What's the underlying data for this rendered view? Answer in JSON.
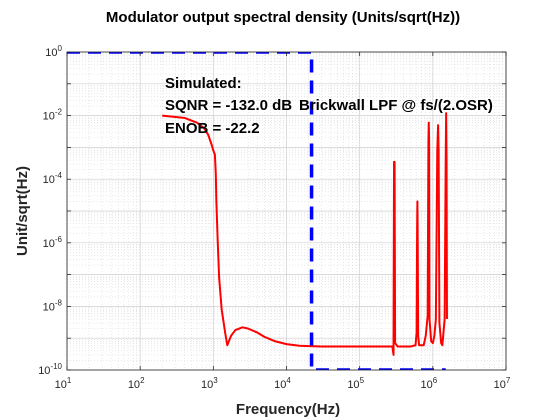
{
  "chart_data": {
    "type": "line",
    "title": "Modulator output spectral density (Units/sqrt(Hz))",
    "xlabel": "Frequency(Hz)",
    "ylabel": "Unit/sqrt(Hz)",
    "xscale": "log",
    "yscale": "log",
    "xlim": [
      10,
      10000000
    ],
    "ylim": [
      1e-10,
      1
    ],
    "grid": true,
    "minor_grid": true,
    "x_tick_labels": [
      {
        "base": "10",
        "exp": "1"
      },
      {
        "base": "10",
        "exp": "2"
      },
      {
        "base": "10",
        "exp": "3"
      },
      {
        "base": "10",
        "exp": "4"
      },
      {
        "base": "10",
        "exp": "5"
      },
      {
        "base": "10",
        "exp": "6"
      },
      {
        "base": "10",
        "exp": "7"
      }
    ],
    "y_tick_labels": [
      {
        "base": "10",
        "exp": "-10"
      },
      {
        "base": "10",
        "exp": "-8"
      },
      {
        "base": "10",
        "exp": "-6"
      },
      {
        "base": "10",
        "exp": "-4"
      },
      {
        "base": "10",
        "exp": "-2"
      },
      {
        "base": "10",
        "exp": "0"
      }
    ],
    "annotations": [
      "Simulated:",
      "SQNR = -132.0 dB",
      "ENOB = -22.2",
      "Brickwall LPF @ fs/(2.OSR)"
    ],
    "series": [
      {
        "color": "#ff0000",
        "style": "solid",
        "points": [
          [
            200,
            0.01
          ],
          [
            400,
            0.0085
          ],
          [
            600,
            0.006
          ],
          [
            750,
            0.004
          ],
          [
            850,
            0.0025
          ],
          [
            950,
            0.0012
          ],
          [
            1000,
            0.0008
          ],
          [
            1050,
            0.0006
          ],
          [
            1080,
            0.00015
          ],
          [
            1100,
            2e-05
          ],
          [
            1150,
            1e-06
          ],
          [
            1200,
            8e-08
          ],
          [
            1300,
            8e-09
          ],
          [
            1450,
            1.5e-09
          ],
          [
            1550,
            6e-10
          ],
          [
            1750,
            1.2e-09
          ],
          [
            2000,
            1.8e-09
          ],
          [
            2500,
            2.2e-09
          ],
          [
            3000,
            2e-09
          ],
          [
            4000,
            1.5e-09
          ],
          [
            5000,
            1.1e-09
          ],
          [
            7000,
            8e-10
          ],
          [
            10000,
            6.5e-10
          ],
          [
            15000,
            5.8e-10
          ],
          [
            30000,
            5.5e-10
          ],
          [
            100000,
            5.5e-10
          ],
          [
            280000,
            5.5e-10
          ],
          [
            290000,
            3e-10
          ],
          [
            295000,
            0.00035
          ],
          [
            300000,
            0.00035
          ],
          [
            305000,
            7e-10
          ],
          [
            330000,
            5.5e-10
          ],
          [
            500000,
            5.5e-10
          ],
          [
            580000,
            6e-10
          ],
          [
            600000,
            1.5e-09
          ],
          [
            610000,
            3e-06
          ],
          [
            615000,
            2e-05
          ],
          [
            620000,
            3e-06
          ],
          [
            630000,
            1.2e-09
          ],
          [
            650000,
            6e-10
          ],
          [
            750000,
            6e-10
          ],
          [
            800000,
            1.2e-09
          ],
          [
            850000,
            5e-09
          ],
          [
            870000,
            0.0015
          ],
          [
            880000,
            0.006
          ],
          [
            890000,
            0.0015
          ],
          [
            900000,
            4e-09
          ],
          [
            950000,
            8e-10
          ],
          [
            1000000,
            7e-10
          ],
          [
            1050000,
            1.2e-09
          ],
          [
            1100000,
            4e-09
          ],
          [
            1150000,
            0.0008
          ],
          [
            1180000,
            0.005
          ],
          [
            1200000,
            0.0008
          ],
          [
            1230000,
            3e-09
          ],
          [
            1300000,
            7e-10
          ],
          [
            1350000,
            6e-10
          ],
          [
            1450000,
            4e-09
          ],
          [
            1500000,
            0.0005
          ],
          [
            1520000,
            0.012
          ],
          [
            1540000,
            0.0005
          ],
          [
            1560000,
            4e-09
          ]
        ]
      },
      {
        "color": "#0000ff",
        "style": "dashed",
        "points": [
          [
            10,
            1
          ],
          [
            22000,
            1
          ],
          [
            22000,
            1e-10
          ],
          [
            1500000,
            1e-10
          ]
        ]
      }
    ]
  }
}
